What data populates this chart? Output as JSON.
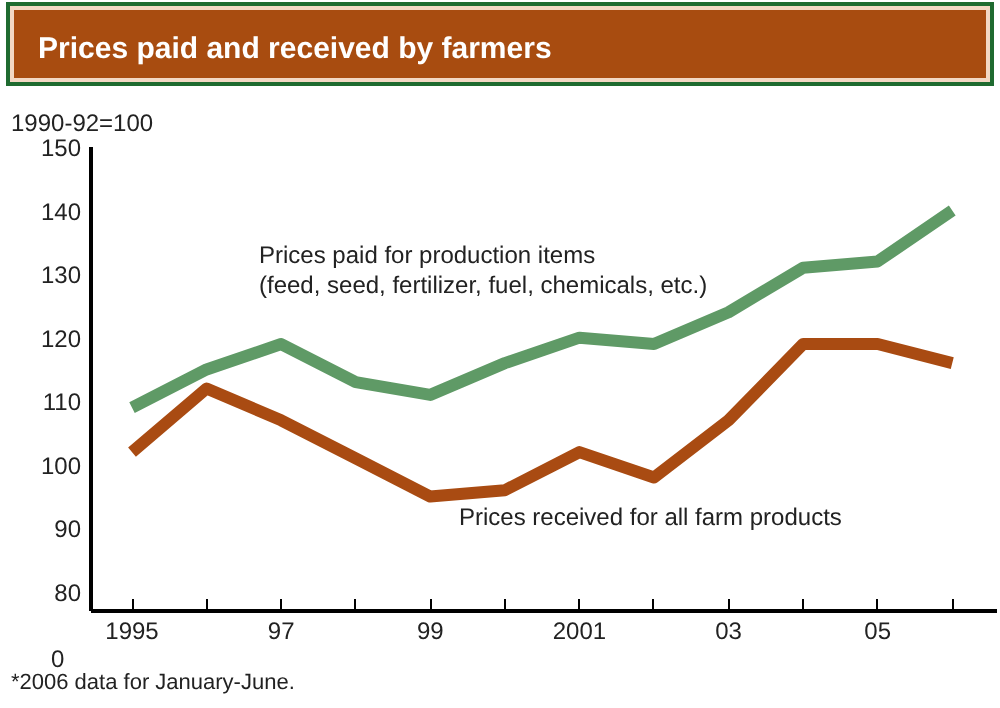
{
  "chart_data": {
    "type": "line",
    "title": "Prices paid and received by farmers",
    "ylabel": "1990-92=100",
    "x": [
      1995,
      1996,
      1997,
      1998,
      1999,
      2000,
      2001,
      2002,
      2003,
      2004,
      2005,
      2006
    ],
    "series": [
      {
        "name": "Prices paid for production items\n(feed, seed, fertilizer, fuel, chemicals, etc.)",
        "color": "#5f9a66",
        "values": [
          109,
          115,
          119,
          113,
          111,
          116,
          120,
          119,
          124,
          131,
          132,
          140
        ]
      },
      {
        "name": "Prices received for all farm products",
        "color": "#a94b12",
        "values": [
          102,
          112,
          107,
          101,
          95,
          96,
          102,
          98,
          107,
          119,
          119,
          116
        ]
      }
    ],
    "xlim": [
      1994.45,
      2006.6
    ],
    "ylim": [
      77,
      150
    ],
    "xticks": [
      1995,
      {
        "value": 1996,
        "label": null
      },
      {
        "value": 1997,
        "label": "97"
      },
      {
        "value": 1998,
        "label": null
      },
      {
        "value": 1999,
        "label": "99"
      },
      {
        "value": 2000,
        "label": null
      },
      2001,
      {
        "value": 2002,
        "label": null
      },
      {
        "value": 2003,
        "label": "03"
      },
      {
        "value": 2004,
        "label": null
      },
      {
        "value": 2005,
        "label": "05"
      },
      {
        "value": 2006,
        "label": null
      }
    ],
    "yticks": [
      80,
      90,
      100,
      110,
      120,
      130,
      140,
      150
    ],
    "annotations": [
      "0",
      "*2006 data for January-June."
    ],
    "grid": false,
    "marker": "none",
    "line_style": "solid"
  }
}
